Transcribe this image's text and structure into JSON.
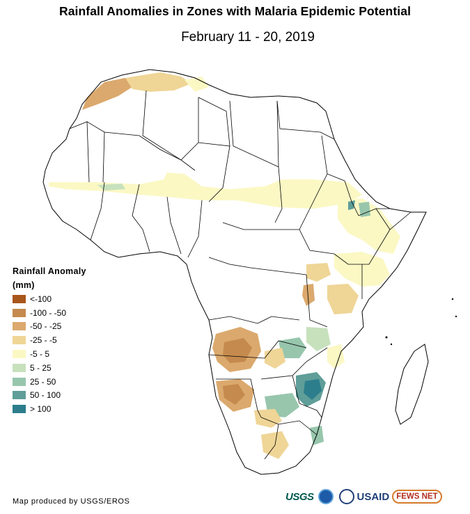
{
  "title": "Rainfall Anomalies in Zones with Malaria Epidemic Potential",
  "subtitle": "February 11 - 20, 2019",
  "legend": {
    "title_line1": "Rainfall Anomaly",
    "title_line2": "(mm)",
    "classes": [
      {
        "label": "<-100",
        "color": "#a9561b"
      },
      {
        "label": "-100 - -50",
        "color": "#c58a4e"
      },
      {
        "label": "-50 - -25",
        "color": "#dba96d"
      },
      {
        "label": "-25 - -5",
        "color": "#efd596"
      },
      {
        "label": "-5 - 5",
        "color": "#fbf8c4"
      },
      {
        "label": "5 - 25",
        "color": "#c7e1bd"
      },
      {
        "label": "25 - 50",
        "color": "#97c6ad"
      },
      {
        "label": "50 - 100",
        "color": "#5f9e99"
      },
      {
        "label": "> 100",
        "color": "#2c7e8c"
      }
    ]
  },
  "credit": "Map produced by USGS/EROS",
  "logos": {
    "usgs": "USGS",
    "usaid": "USAID",
    "fews": "FEWS NET"
  }
}
